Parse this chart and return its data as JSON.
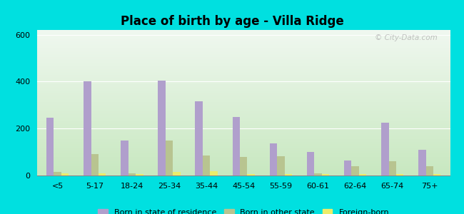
{
  "title": "Place of birth by age - Villa Ridge",
  "categories": [
    "<5",
    "5-17",
    "18-24",
    "25-34",
    "35-44",
    "45-54",
    "55-59",
    "60-61",
    "62-64",
    "65-74",
    "75+"
  ],
  "born_in_state": [
    245,
    400,
    150,
    405,
    315,
    248,
    138,
    100,
    63,
    225,
    108
  ],
  "born_other_state": [
    15,
    90,
    10,
    148,
    85,
    80,
    82,
    8,
    38,
    60,
    38
  ],
  "foreign_born": [
    8,
    8,
    5,
    15,
    18,
    5,
    5,
    5,
    5,
    5,
    5
  ],
  "bar_color_state": "#b09fcc",
  "bar_color_other": "#b8c490",
  "bar_color_foreign": "#eded6a",
  "ylim": [
    0,
    620
  ],
  "yticks": [
    0,
    200,
    400,
    600
  ],
  "outer_bg": "#00e0e0",
  "bar_width": 0.2,
  "legend_labels": [
    "Born in state of residence",
    "Born in other state",
    "Foreign-born"
  ],
  "watermark": "© City-Data.com"
}
